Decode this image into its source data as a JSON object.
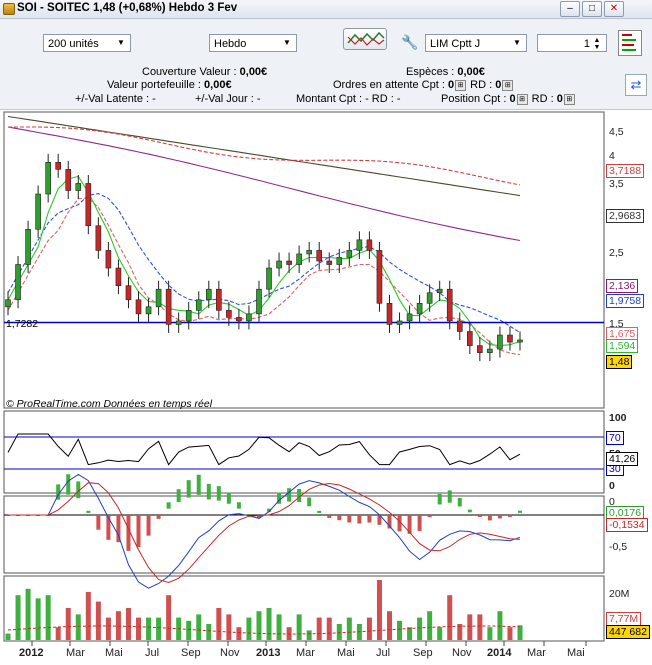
{
  "window": {
    "title": "SOI - SOITEC     1,48 (+0,68%)     Hebdo  3 Fev",
    "buttons": [
      "–",
      "□",
      "✕"
    ]
  },
  "toolbar": {
    "units_value": "200 unités",
    "period_value": "Hebdo",
    "order_type_value": "LIM Cptt J",
    "quantity_value": "1"
  },
  "account": {
    "couverture_label": "Couverture Valeur :",
    "couverture_value": "0,00€",
    "especes_label": "Espèces :",
    "especes_value": "0,00€",
    "portefeuille_label": "Valeur portefeuille :",
    "portefeuille_value": "0,00€",
    "ordres_label": "Ordres en attente  Cpt :",
    "ordres_rd": "RD :",
    "latente": "+/-Val Latente : -",
    "jour": "+/-Val Jour : -",
    "montant": "Montant  Cpt : -  RD : -",
    "position_label": "Position  Cpt :",
    "position_rd": "RD :",
    "zero": "0"
  },
  "price_panel": {
    "y_ticks": [
      "4,5",
      "4",
      "3,5",
      "3",
      "2,5",
      "2",
      "1,5"
    ],
    "hline_label": "1,7282",
    "value_labels": [
      {
        "text": "3,7188",
        "color": "#d04040"
      },
      {
        "text": "2,9683",
        "color": "#333333"
      },
      {
        "text": "2,136",
        "color": "#8b1a6b"
      },
      {
        "text": "1,9758",
        "color": "#1f3fc8"
      },
      {
        "text": "1,675",
        "color": "#e06060"
      },
      {
        "text": "1,594",
        "color": "#2fb82f"
      },
      {
        "text": "1,48",
        "color": "#000000"
      }
    ],
    "watermark": "© ProRealTime.com  Données en temps réel"
  },
  "rsi_panel": {
    "y_ticks": [
      "100",
      "70",
      "50",
      "30",
      "0"
    ],
    "value_label": "41,26"
  },
  "macd_panel": {
    "y_ticks": [
      "0",
      "-0,5"
    ],
    "labels": [
      "0,0176",
      "-0,1534"
    ]
  },
  "volume_panel": {
    "y_ticks": [
      "20M"
    ],
    "labels": [
      "7,77M",
      "447 682"
    ]
  },
  "x_axis": [
    "2012",
    "Mar",
    "Mai",
    "Jul",
    "Sep",
    "Nov",
    "2013",
    "Mar",
    "Mai",
    "Jul",
    "Sep",
    "Nov",
    "2014",
    "Mar",
    "Mai"
  ],
  "colors": {
    "up": "#2e9e2e",
    "down": "#c62828",
    "ma20": "#2ec82e",
    "ma50": "#3050e0",
    "ma100": "#8e2a8e",
    "ma200": "#4a4a2a",
    "hline": "#0000cc"
  },
  "chart_data": {
    "type": "candlestick",
    "weekly_close": [
      2.05,
      2.55,
      3.05,
      3.55,
      4.0,
      3.9,
      3.6,
      3.7,
      3.1,
      2.75,
      2.5,
      2.25,
      2.05,
      1.85,
      1.95,
      2.2,
      1.7,
      1.75,
      1.9,
      2.05,
      2.2,
      1.9,
      1.8,
      1.75,
      1.85,
      2.2,
      2.5,
      2.6,
      2.55,
      2.7,
      2.75,
      2.6,
      2.55,
      2.65,
      2.75,
      2.9,
      2.75,
      2.0,
      1.7,
      1.75,
      1.85,
      2.0,
      2.15,
      2.2,
      1.75,
      1.6,
      1.4,
      1.3,
      1.35,
      1.55,
      1.45,
      1.48
    ],
    "hline": 1.7282
  }
}
